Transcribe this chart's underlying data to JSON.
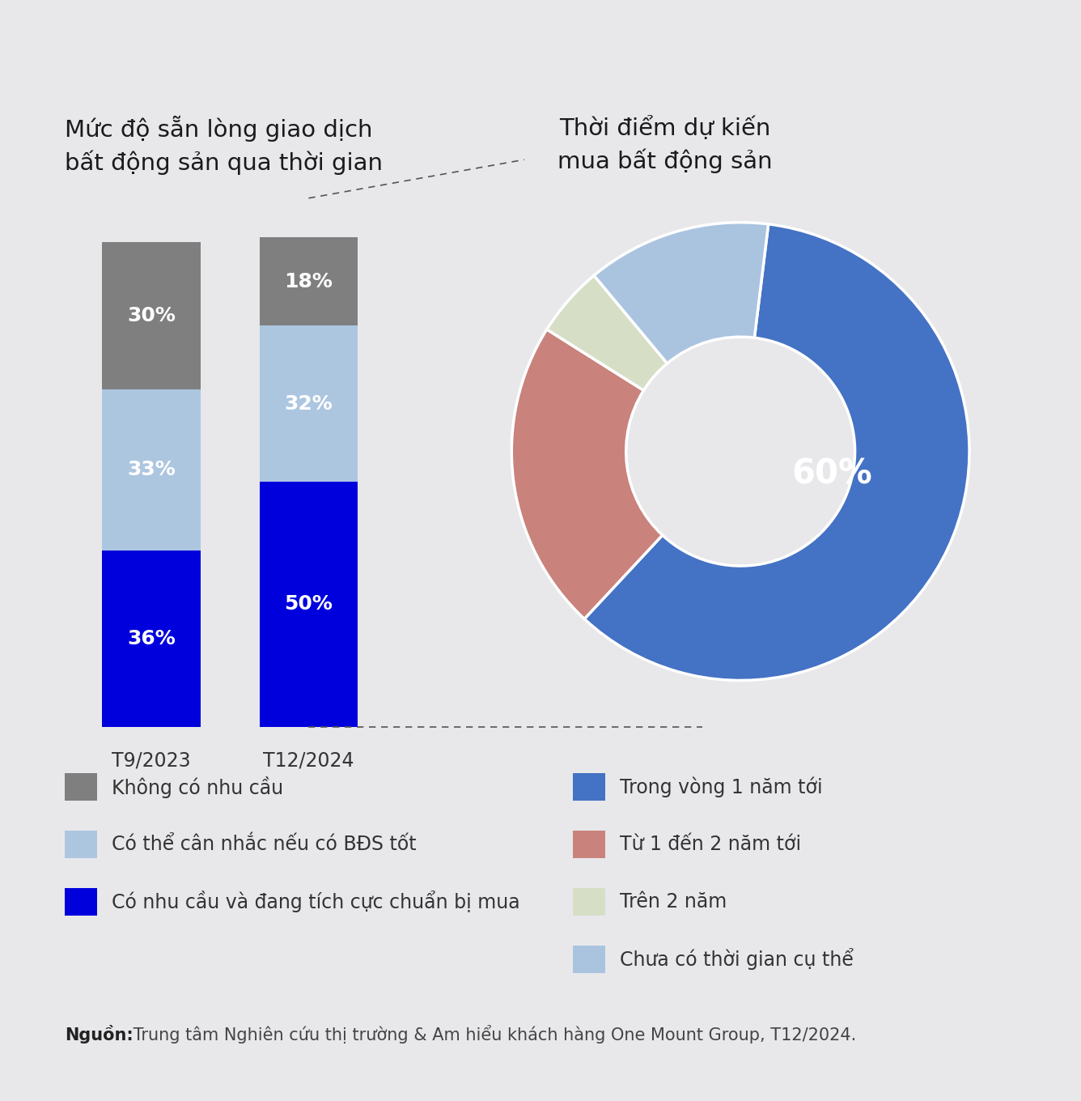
{
  "bg_color": "#e8e8eb",
  "title_left": "Mức độ sẵn lòng giao dịch\nbất động sản qua thời gian",
  "title_right": "Thời điểm dự kiến\nmua bất động sản",
  "bar_data": {
    "T9/2023": {
      "khong": 30,
      "co_the": 33,
      "co_nhu": 36
    },
    "T12/2024": {
      "khong": 18,
      "co_the": 32,
      "co_nhu": 50
    }
  },
  "bar_colors": {
    "khong": "#7f7f7f",
    "co_the": "#adc6e0",
    "co_nhu": "#0000dd"
  },
  "donut_data": [
    60,
    22,
    5,
    13
  ],
  "donut_keys": [
    "Trong vòng 1 năm tới",
    "Từ 1 đến 2 năm tới",
    "Trên 2 năm",
    "Chưa có thời gian cụ thể"
  ],
  "donut_colors": [
    "#4472c4",
    "#c9827c",
    "#d6dfc6",
    "#aac4e0"
  ],
  "donut_label": "60%",
  "donut_startangle": 83,
  "legend_left": [
    {
      "color": "#7f7f7f",
      "label": "Không có nhu cầu"
    },
    {
      "color": "#adc6e0",
      "label": "Có thể cân nhắc nếu có BĐS tốt"
    },
    {
      "color": "#0000dd",
      "label": "Có nhu cầu và đang tích cực chuẩn bị mua"
    }
  ],
  "legend_right": [
    {
      "color": "#4472c4",
      "label": "Trong vòng 1 năm tới"
    },
    {
      "color": "#c9827c",
      "label": "Từ 1 đến 2 năm tới"
    },
    {
      "color": "#d6dfc6",
      "label": "Trên 2 năm"
    },
    {
      "color": "#aac4e0",
      "label": "Chưa có thời gian cụ thể"
    }
  ],
  "source_bold": "Nguồn:",
  "source_text": " Trung tâm Nghiên cứu thị trường & Am hiểu khách hàng One Mount Group, T12/2024.",
  "title_fontsize": 21,
  "bar_label_fontsize": 18,
  "xlabel_fontsize": 17,
  "legend_fontsize": 17,
  "source_fontsize": 15
}
